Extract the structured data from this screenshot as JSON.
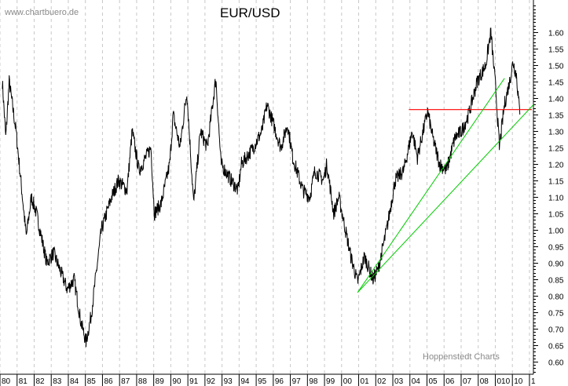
{
  "chart_data": {
    "type": "line",
    "title": "EUR/USD",
    "watermark_top": "www.chartbuero.de",
    "watermark_bottom": "Hoppenstedt Charts",
    "xlabel": "",
    "ylabel": "",
    "ylim": [
      0.57,
      1.69
    ],
    "xlim": [
      1980,
      2011
    ],
    "grid": "vertical dashed",
    "x_tick_labels": [
      "80",
      "81",
      "82",
      "83",
      "84",
      "85",
      "86",
      "87",
      "88",
      "89",
      "90",
      "91",
      "92",
      "93",
      "94",
      "95",
      "96",
      "97",
      "98",
      "99",
      "00",
      "01",
      "02",
      "03",
      "04",
      "05",
      "06",
      "07",
      "08",
      "010",
      "10",
      "1"
    ],
    "y_tick_labels": [
      "1.60",
      "1.55",
      "1.50",
      "1.45",
      "1.40",
      "1.35",
      "1.30",
      "1.25",
      "1.20",
      "1.15",
      "1.10",
      "1.05",
      "1.00",
      "0.95",
      "0.90",
      "0.85",
      "0.80",
      "0.75",
      "0.70",
      "0.65",
      "0.60"
    ],
    "y_tick_values": [
      1.6,
      1.55,
      1.5,
      1.45,
      1.4,
      1.35,
      1.3,
      1.25,
      1.2,
      1.15,
      1.1,
      1.05,
      1.0,
      0.95,
      0.9,
      0.85,
      0.8,
      0.75,
      0.7,
      0.65,
      0.6
    ],
    "series": [
      {
        "name": "EUR/USD",
        "color": "#000000",
        "points": [
          [
            1980.0,
            1.45
          ],
          [
            1980.2,
            1.28
          ],
          [
            1980.4,
            1.45
          ],
          [
            1980.8,
            1.3
          ],
          [
            1981.4,
            0.98
          ],
          [
            1981.7,
            1.1
          ],
          [
            1982.0,
            1.05
          ],
          [
            1982.6,
            0.9
          ],
          [
            1983.0,
            0.93
          ],
          [
            1983.8,
            0.82
          ],
          [
            1984.2,
            0.85
          ],
          [
            1984.6,
            0.72
          ],
          [
            1984.9,
            0.66
          ],
          [
            1985.2,
            0.74
          ],
          [
            1985.8,
            1.0
          ],
          [
            1986.4,
            1.1
          ],
          [
            1986.8,
            1.15
          ],
          [
            1987.3,
            1.12
          ],
          [
            1987.6,
            1.3
          ],
          [
            1988.0,
            1.18
          ],
          [
            1988.7,
            1.25
          ],
          [
            1988.9,
            1.05
          ],
          [
            1989.3,
            1.08
          ],
          [
            1989.8,
            1.2
          ],
          [
            1990.0,
            1.35
          ],
          [
            1990.4,
            1.25
          ],
          [
            1990.8,
            1.42
          ],
          [
            1991.2,
            1.08
          ],
          [
            1991.6,
            1.3
          ],
          [
            1992.0,
            1.25
          ],
          [
            1992.5,
            1.46
          ],
          [
            1992.8,
            1.2
          ],
          [
            1993.4,
            1.15
          ],
          [
            1993.8,
            1.12
          ],
          [
            1994.0,
            1.2
          ],
          [
            1994.7,
            1.25
          ],
          [
            1995.2,
            1.3
          ],
          [
            1995.5,
            1.38
          ],
          [
            1996.0,
            1.3
          ],
          [
            1996.3,
            1.25
          ],
          [
            1996.7,
            1.32
          ],
          [
            1997.0,
            1.22
          ],
          [
            1997.6,
            1.12
          ],
          [
            1998.0,
            1.1
          ],
          [
            1998.3,
            1.18
          ],
          [
            1998.8,
            1.15
          ],
          [
            1999.0,
            1.2
          ],
          [
            1999.4,
            1.05
          ],
          [
            1999.7,
            1.1
          ],
          [
            2000.4,
            0.92
          ],
          [
            2000.8,
            0.84
          ],
          [
            2001.2,
            0.92
          ],
          [
            2001.7,
            0.85
          ],
          [
            2002.0,
            0.88
          ],
          [
            2002.5,
            1.0
          ],
          [
            2003.0,
            1.15
          ],
          [
            2003.5,
            1.18
          ],
          [
            2004.0,
            1.3
          ],
          [
            2004.3,
            1.22
          ],
          [
            2004.9,
            1.36
          ],
          [
            2005.2,
            1.28
          ],
          [
            2005.6,
            1.2
          ],
          [
            2006.0,
            1.18
          ],
          [
            2006.5,
            1.28
          ],
          [
            2006.9,
            1.3
          ],
          [
            2007.3,
            1.35
          ],
          [
            2007.8,
            1.45
          ],
          [
            2008.3,
            1.5
          ],
          [
            2008.6,
            1.6
          ],
          [
            2008.9,
            1.42
          ],
          [
            2009.1,
            1.25
          ],
          [
            2009.4,
            1.38
          ],
          [
            2009.7,
            1.45
          ],
          [
            2009.9,
            1.51
          ],
          [
            2010.1,
            1.47
          ],
          [
            2010.3,
            1.35
          ]
        ]
      }
    ],
    "annotations": [
      {
        "type": "hline",
        "name": "resistance-line",
        "color": "#ff0000",
        "y": 1.365,
        "x_from": 2003.8,
        "x_to": 2011.0
      },
      {
        "type": "trendline",
        "name": "upper-trendline",
        "color": "#00cc00",
        "from": [
          2000.8,
          0.81
        ],
        "to": [
          2009.4,
          1.46
        ]
      },
      {
        "type": "trendline",
        "name": "lower-trendline",
        "color": "#00cc00",
        "from": [
          2000.8,
          0.81
        ],
        "to": [
          2011.1,
          1.38
        ]
      }
    ]
  }
}
